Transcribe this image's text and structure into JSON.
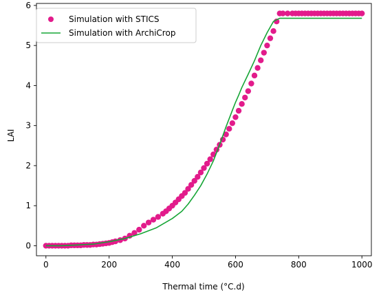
{
  "chart_data": {
    "type": "line",
    "title": "",
    "xlabel": "Thermal time (°C.d)",
    "ylabel": "LAI",
    "xlim": [
      -30,
      1030
    ],
    "ylim": [
      -0.25,
      6.05
    ],
    "xticks": [
      0,
      200,
      400,
      600,
      800,
      1000
    ],
    "yticks": [
      0,
      1,
      2,
      3,
      4,
      5,
      6
    ],
    "grid": false,
    "legend_position": "top-left",
    "series": [
      {
        "name": "Simulation with STICS",
        "style": "scatter",
        "color": "#e21b8b",
        "x": [
          0,
          10,
          20,
          30,
          40,
          50,
          60,
          70,
          80,
          90,
          100,
          110,
          120,
          130,
          140,
          150,
          160,
          170,
          180,
          190,
          200,
          210,
          220,
          235,
          250,
          265,
          280,
          295,
          310,
          325,
          340,
          355,
          370,
          380,
          390,
          400,
          410,
          420,
          430,
          440,
          450,
          460,
          470,
          480,
          490,
          500,
          510,
          520,
          530,
          540,
          550,
          560,
          570,
          580,
          590,
          600,
          610,
          620,
          630,
          640,
          650,
          660,
          670,
          680,
          690,
          700,
          710,
          720,
          730,
          740,
          750,
          765,
          780,
          790,
          800,
          810,
          820,
          830,
          840,
          850,
          860,
          870,
          880,
          890,
          900,
          910,
          920,
          930,
          940,
          950,
          960,
          970,
          980,
          990,
          1000
        ],
        "y": [
          0.0,
          0.0,
          0.0,
          0.0,
          0.0,
          0.0,
          0.0,
          0.0,
          0.01,
          0.01,
          0.01,
          0.01,
          0.02,
          0.02,
          0.02,
          0.03,
          0.03,
          0.04,
          0.05,
          0.06,
          0.07,
          0.09,
          0.11,
          0.14,
          0.18,
          0.25,
          0.32,
          0.4,
          0.5,
          0.58,
          0.65,
          0.72,
          0.8,
          0.86,
          0.93,
          1.0,
          1.08,
          1.16,
          1.24,
          1.32,
          1.42,
          1.52,
          1.62,
          1.72,
          1.83,
          1.94,
          2.05,
          2.16,
          2.28,
          2.4,
          2.52,
          2.65,
          2.78,
          2.92,
          3.06,
          3.21,
          3.37,
          3.54,
          3.7,
          3.86,
          4.05,
          4.25,
          4.44,
          4.63,
          4.82,
          5.0,
          5.18,
          5.36,
          5.6,
          5.8,
          5.8,
          5.8,
          5.8,
          5.8,
          5.8,
          5.8,
          5.8,
          5.8,
          5.8,
          5.8,
          5.8,
          5.8,
          5.8,
          5.8,
          5.8,
          5.8,
          5.8,
          5.8,
          5.8,
          5.8,
          5.8,
          5.8,
          5.8,
          5.8,
          5.8
        ]
      },
      {
        "name": "Simulation with ArchiCrop",
        "style": "line",
        "color": "#15a535",
        "x": [
          0,
          50,
          100,
          150,
          200,
          250,
          300,
          350,
          400,
          430,
          450,
          470,
          490,
          510,
          530,
          550,
          570,
          590,
          600,
          610,
          620,
          640,
          660,
          680,
          700,
          720,
          740,
          760,
          780,
          800,
          850,
          900,
          950,
          1000
        ],
        "y": [
          0.0,
          0.0,
          0.02,
          0.04,
          0.1,
          0.18,
          0.3,
          0.45,
          0.68,
          0.86,
          1.04,
          1.26,
          1.5,
          1.79,
          2.12,
          2.53,
          2.97,
          3.38,
          3.58,
          3.76,
          3.95,
          4.28,
          4.62,
          5.0,
          5.32,
          5.6,
          5.68,
          5.68,
          5.68,
          5.68,
          5.68,
          5.68,
          5.68,
          5.68
        ]
      }
    ]
  }
}
